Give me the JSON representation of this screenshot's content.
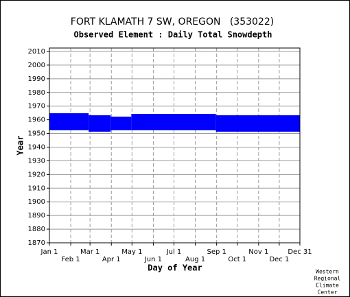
{
  "chart_data": {
    "type": "range",
    "title": "FORT KLAMATH 7 SW, OREGON   (353022)",
    "subtitle": "Observed Element : Daily Total Snowdepth",
    "x_label": "Day of Year",
    "y_label": "Year",
    "color": "#0000ff",
    "xlim": [
      1,
      365
    ],
    "ylim": [
      1870,
      2012.5
    ],
    "xticks": [
      {
        "value": 1,
        "label": "Jan 1"
      },
      {
        "value": 32,
        "label": "Feb 1"
      },
      {
        "value": 60,
        "label": "Mar 1"
      },
      {
        "value": 91,
        "label": "Apr 1"
      },
      {
        "value": 121,
        "label": "May 1"
      },
      {
        "value": 152,
        "label": "Jun 1"
      },
      {
        "value": 182,
        "label": "Jul 1"
      },
      {
        "value": 213,
        "label": "Aug 1"
      },
      {
        "value": 244,
        "label": "Sep 1"
      },
      {
        "value": 274,
        "label": "Oct 1"
      },
      {
        "value": 305,
        "label": "Nov 1"
      },
      {
        "value": 335,
        "label": "Dec 1"
      },
      {
        "value": 365,
        "label": "Dec 31"
      }
    ],
    "yticks": [
      1870,
      1880,
      1890,
      1900,
      1910,
      1920,
      1930,
      1940,
      1950,
      1960,
      1970,
      1980,
      1990,
      2000,
      2010
    ],
    "grid": true,
    "day_start": [
      1,
      58,
      90,
      120,
      243
    ],
    "day_end": [
      58,
      90,
      120,
      243,
      365
    ],
    "year_start": [
      1952.3,
      1951.3,
      1952.3,
      1952.3,
      1951.3
    ],
    "year_end": [
      1964.8,
      1963.3,
      1962.3,
      1964.3,
      1963.3
    ]
  },
  "footer": [
    "Western",
    "Regional",
    "Climate",
    "Center"
  ]
}
